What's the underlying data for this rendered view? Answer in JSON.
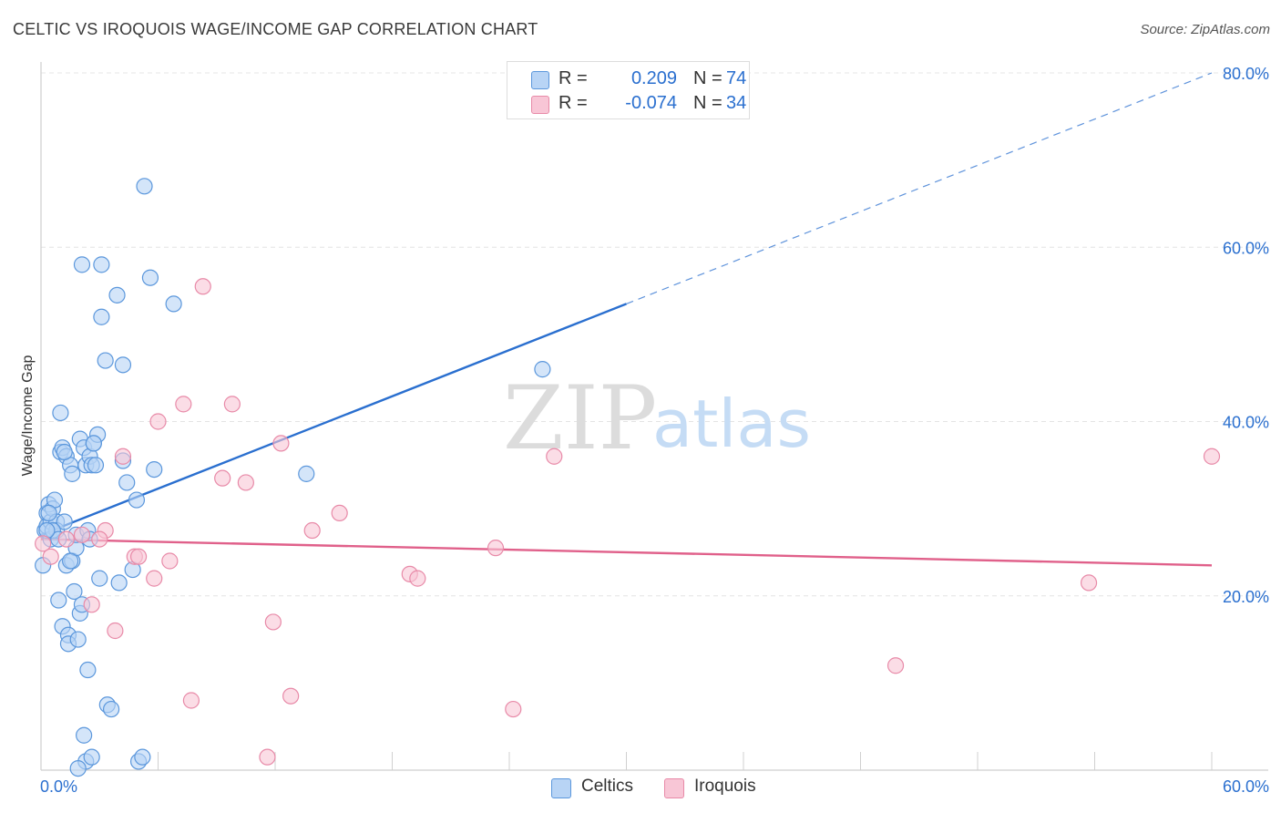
{
  "header": {
    "title": "CELTIC VS IROQUOIS WAGE/INCOME GAP CORRELATION CHART",
    "source": "Source: ZipAtlas.com"
  },
  "legend": {
    "r_label": "R =",
    "n_label": "N =",
    "celtics": {
      "r": "0.209",
      "n": "74"
    },
    "iroquois": {
      "r": "-0.074",
      "n": "34"
    }
  },
  "watermark": {
    "zip": "ZIP",
    "atlas": "atlas"
  },
  "colors": {
    "celtics_fill": "#b8d4f5",
    "celtics_stroke": "#5b97dc",
    "celtics_line": "#2a6fcf",
    "iroquois_fill": "#f8c6d6",
    "iroquois_stroke": "#e88aa8",
    "iroquois_line": "#e0608a",
    "tick_label": "#2a6fcf",
    "grid": "#e4e4e4"
  },
  "chart_data": {
    "type": "scatter",
    "title": "CELTIC VS IROQUOIS WAGE/INCOME GAP CORRELATION CHART",
    "xlabel": "",
    "ylabel": "Wage/Income Gap",
    "xlim": [
      0,
      60
    ],
    "ylim": [
      0,
      80
    ],
    "x_tick_labels": [
      "0.0%",
      "60.0%"
    ],
    "y_ticks": [
      20,
      40,
      60,
      80
    ],
    "y_tick_labels": [
      "20.0%",
      "40.0%",
      "60.0%",
      "80.0%"
    ],
    "grid": true,
    "series": [
      {
        "name": "Celtics",
        "r": 0.209,
        "n": 74,
        "trend": {
          "x0": 0,
          "y0": 27.0,
          "x1": 30,
          "y1": 53.5,
          "dash_to_x": 60,
          "dash_to_y": 80.0
        },
        "points": [
          [
            0.1,
            23.5
          ],
          [
            0.2,
            27.5
          ],
          [
            0.3,
            28.0
          ],
          [
            0.3,
            29.5
          ],
          [
            0.4,
            30.5
          ],
          [
            0.5,
            28.5
          ],
          [
            0.5,
            26.5
          ],
          [
            0.6,
            30.0
          ],
          [
            0.7,
            31.0
          ],
          [
            0.8,
            28.5
          ],
          [
            0.8,
            27.5
          ],
          [
            0.9,
            19.5
          ],
          [
            1.0,
            41.0
          ],
          [
            1.0,
            36.5
          ],
          [
            1.1,
            37.0
          ],
          [
            1.1,
            16.5
          ],
          [
            1.2,
            28.5
          ],
          [
            1.3,
            23.5
          ],
          [
            1.3,
            36.0
          ],
          [
            1.4,
            15.5
          ],
          [
            1.4,
            14.5
          ],
          [
            1.5,
            35.0
          ],
          [
            1.6,
            34.0
          ],
          [
            1.6,
            24.0
          ],
          [
            1.7,
            20.5
          ],
          [
            1.8,
            25.5
          ],
          [
            1.8,
            27.0
          ],
          [
            1.9,
            15.0
          ],
          [
            2.0,
            18.0
          ],
          [
            2.0,
            38.0
          ],
          [
            2.1,
            19.0
          ],
          [
            2.1,
            58.0
          ],
          [
            2.2,
            37.0
          ],
          [
            2.2,
            4.0
          ],
          [
            2.3,
            1.0
          ],
          [
            2.3,
            35.0
          ],
          [
            2.4,
            11.5
          ],
          [
            2.4,
            27.5
          ],
          [
            2.5,
            26.5
          ],
          [
            2.5,
            36.0
          ],
          [
            2.6,
            1.5
          ],
          [
            2.6,
            35.0
          ],
          [
            2.7,
            37.5
          ],
          [
            2.8,
            35.0
          ],
          [
            2.9,
            38.5
          ],
          [
            3.0,
            22.0
          ],
          [
            3.1,
            52.0
          ],
          [
            3.1,
            58.0
          ],
          [
            3.3,
            47.0
          ],
          [
            3.4,
            7.5
          ],
          [
            3.6,
            7.0
          ],
          [
            3.9,
            54.5
          ],
          [
            4.0,
            21.5
          ],
          [
            4.2,
            46.5
          ],
          [
            4.2,
            35.5
          ],
          [
            4.4,
            33.0
          ],
          [
            4.7,
            23.0
          ],
          [
            4.9,
            31.0
          ],
          [
            5.0,
            1.0
          ],
          [
            5.2,
            1.5
          ],
          [
            5.3,
            67.0
          ],
          [
            5.6,
            56.5
          ],
          [
            5.8,
            34.5
          ],
          [
            6.8,
            53.5
          ],
          [
            13.6,
            34.0
          ],
          [
            25.7,
            46.0
          ],
          [
            0.6,
            27.5
          ],
          [
            1.2,
            36.5
          ],
          [
            0.4,
            29.5
          ],
          [
            1.9,
            0.2
          ],
          [
            2.7,
            37.5
          ],
          [
            0.9,
            26.5
          ],
          [
            1.5,
            24.0
          ],
          [
            0.3,
            27.5
          ]
        ]
      },
      {
        "name": "Iroquois",
        "r": -0.074,
        "n": 34,
        "trend": {
          "x0": 0,
          "y0": 26.5,
          "x1": 60,
          "y1": 23.5
        },
        "points": [
          [
            0.1,
            26.0
          ],
          [
            0.5,
            24.5
          ],
          [
            1.3,
            26.5
          ],
          [
            2.1,
            27.0
          ],
          [
            2.6,
            19.0
          ],
          [
            3.3,
            27.5
          ],
          [
            3.8,
            16.0
          ],
          [
            4.2,
            36.0
          ],
          [
            4.8,
            24.5
          ],
          [
            5.0,
            24.5
          ],
          [
            5.8,
            22.0
          ],
          [
            6.0,
            40.0
          ],
          [
            6.6,
            24.0
          ],
          [
            7.3,
            42.0
          ],
          [
            7.7,
            8.0
          ],
          [
            8.3,
            55.5
          ],
          [
            9.3,
            33.5
          ],
          [
            9.8,
            42.0
          ],
          [
            10.5,
            33.0
          ],
          [
            11.6,
            1.5
          ],
          [
            11.9,
            17.0
          ],
          [
            12.3,
            37.5
          ],
          [
            12.8,
            8.5
          ],
          [
            13.9,
            27.5
          ],
          [
            15.3,
            29.5
          ],
          [
            18.9,
            22.5
          ],
          [
            19.3,
            22.0
          ],
          [
            23.3,
            25.5
          ],
          [
            24.2,
            7.0
          ],
          [
            26.3,
            36.0
          ],
          [
            43.8,
            12.0
          ],
          [
            53.7,
            21.5
          ],
          [
            60.0,
            36.0
          ],
          [
            3.0,
            26.5
          ]
        ]
      }
    ]
  },
  "bottom_legend": {
    "celtics": "Celtics",
    "iroquois": "Iroquois"
  }
}
